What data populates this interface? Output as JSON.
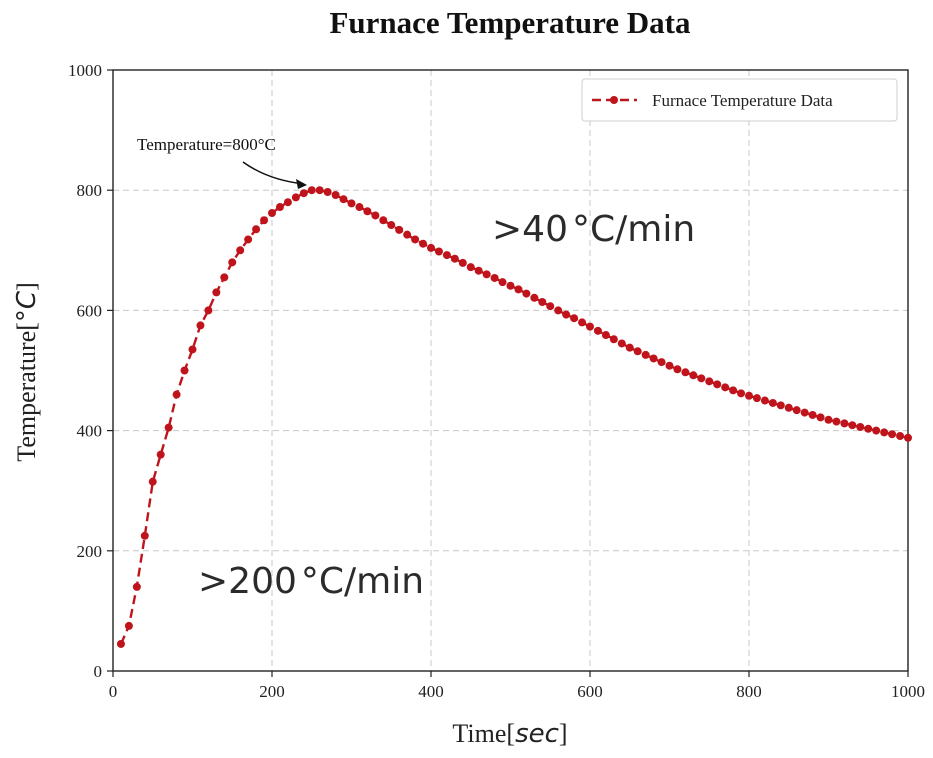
{
  "chart_data": {
    "type": "line",
    "title": "Furnace Temperature Data",
    "xlabel": "Time",
    "xlabel_unit": "sec",
    "ylabel": "Temperature",
    "ylabel_unit": "°C",
    "xlim": [
      0,
      1000
    ],
    "ylim": [
      0,
      1000
    ],
    "xticks": [
      0,
      200,
      400,
      600,
      800,
      1000
    ],
    "yticks": [
      0,
      200,
      400,
      600,
      800,
      1000
    ],
    "grid": true,
    "legend": {
      "position": "top-right",
      "entries": [
        "Furnace Temperature Data"
      ]
    },
    "series": [
      {
        "name": "Furnace Temperature Data",
        "color": "#c0141c",
        "line_style": "dashed",
        "marker": "circle",
        "x": [
          10,
          20,
          30,
          40,
          50,
          60,
          70,
          80,
          90,
          100,
          110,
          120,
          130,
          140,
          150,
          160,
          170,
          180,
          190,
          200,
          210,
          220,
          230,
          240,
          250,
          260,
          270,
          280,
          290,
          300,
          310,
          320,
          330,
          340,
          350,
          360,
          370,
          380,
          390,
          400,
          410,
          420,
          430,
          440,
          450,
          460,
          470,
          480,
          490,
          500,
          510,
          520,
          530,
          540,
          550,
          560,
          570,
          580,
          590,
          600,
          610,
          620,
          630,
          640,
          650,
          660,
          670,
          680,
          690,
          700,
          710,
          720,
          730,
          740,
          750,
          760,
          770,
          780,
          790,
          800,
          810,
          820,
          830,
          840,
          850,
          860,
          870,
          880,
          890,
          900,
          910,
          920,
          930,
          940,
          950,
          960,
          970,
          980,
          990,
          1000
        ],
        "y": [
          45,
          75,
          140,
          225,
          315,
          360,
          405,
          460,
          500,
          535,
          575,
          600,
          630,
          655,
          680,
          700,
          718,
          735,
          750,
          762,
          772,
          780,
          788,
          795,
          800,
          800,
          797,
          792,
          785,
          778,
          772,
          765,
          758,
          750,
          742,
          734,
          726,
          718,
          711,
          704,
          698,
          692,
          686,
          679,
          672,
          666,
          660,
          654,
          647,
          641,
          635,
          628,
          621,
          614,
          607,
          600,
          593,
          587,
          580,
          573,
          566,
          559,
          552,
          545,
          538,
          532,
          526,
          520,
          514,
          508,
          502,
          497,
          492,
          487,
          482,
          477,
          472,
          467,
          462,
          458,
          454,
          450,
          446,
          442,
          438,
          434,
          430,
          426,
          422,
          418,
          415,
          412,
          409,
          406,
          403,
          400,
          397,
          394,
          391,
          388
        ]
      }
    ],
    "annotations": [
      {
        "text": "Temperature=800°C",
        "x": 250,
        "y": 800,
        "kind": "arrow"
      }
    ],
    "rate_labels": [
      {
        "prefix": ">",
        "value": "40",
        "unit": "°C/min",
        "region": "cooling"
      },
      {
        "prefix": ">",
        "value": "200",
        "unit": "°C/min",
        "region": "heating"
      }
    ]
  }
}
